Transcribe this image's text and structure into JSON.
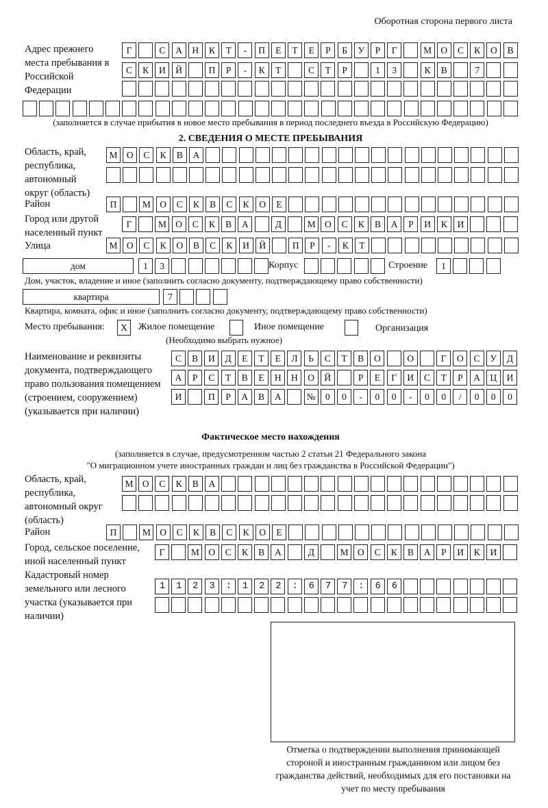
{
  "header": {
    "page_side": "Оборотная сторона первого листа"
  },
  "previous_address": {
    "label": "Адрес прежнего места пребывания в Российской Федерации",
    "rows": [
      "Г САНКТ-ПЕТЕРБУРГ МОСКОВ",
      "СКИЙ ПР-КТ СТР 13 КВ 7",
      "",
      ""
    ],
    "note": "(заполняется в случае прибытия в новое место пребывания в период последнего въезда в Российскую Федерацию)"
  },
  "section2": {
    "title": "2. СВЕДЕНИЯ О МЕСТЕ ПРЕБЫВАНИЯ",
    "region_label": "Область, край, республика, автономный округ (область)",
    "region_rows": [
      "МОСКВА",
      ""
    ],
    "district_label": "Район",
    "district": "П МОСКВСКОЕ",
    "city_label": "Город или другой населенный пункт",
    "city": "Г МОСКВА Д МОСКВАРИКИ",
    "street_label": "Улица",
    "street": "МОСКОВСКИЙ ПР-КТ",
    "house_type": "дом",
    "house_number": "13",
    "building_label": "Корпус",
    "building": "",
    "structure_label": "Строение",
    "structure": "1",
    "house_note": "Дом, участок, владение и иное (заполнить согласно документу, подтверждающему право собственности)",
    "apartment_type": "квартира",
    "apartment_number": "7",
    "apartment_note": "Квартира, комната, офис и иное (заполнить согласно документу, подтверждающему право собственности)",
    "stay_place_label": "Место пребывания:",
    "stay_options": [
      {
        "label": "Жилое помещение",
        "mark": "X"
      },
      {
        "label": "Иное помещение",
        "mark": ""
      },
      {
        "label": "Организация",
        "mark": ""
      }
    ],
    "choose_note": "(Необходимо выбрать нужное)",
    "document_label": "Наименование и реквизиты документа, подтверждающего право пользования помещением (строением, сооружением) (указывается при наличии)",
    "document_rows": [
      "СВИДЕТЕЛЬСТВО О ГОСУД",
      "АРСТВЕННОЙ РЕГИСТРАЦИ",
      "И ПРАВА №00-00-00/000"
    ]
  },
  "actual_location": {
    "title": "Фактическое место нахождения",
    "note_line1": "(заполняется в случае, предусмотренном частью 2 статьи 21 Федерального закона",
    "note_line2": "\"О миграционном учете иностранных граждан и лиц без гражданства в Российской Федерации\")",
    "region_label": "Область, край, республика, автономный округ (область)",
    "region_rows": [
      "МОСКВА",
      ""
    ],
    "district_label": "Район",
    "district": "П МОСКВСКОЕ",
    "city_label": "Город, сельское поселение, иной населенный пункт",
    "city": "Г МОСКВА Д МОСКВАРИКИ",
    "cadastral_label": "Кадастровый номер земельного или лесного участка (указывается при наличии)",
    "cadastral_rows": [
      "1123:122:677:66",
      ""
    ]
  },
  "stamp": {
    "caption": "Отметка о подтверждении выполнения принимающей стороной и иностранным гражданином или лицом без гражданства действий, необходимых для его постановки на учет по месту пребывания"
  }
}
